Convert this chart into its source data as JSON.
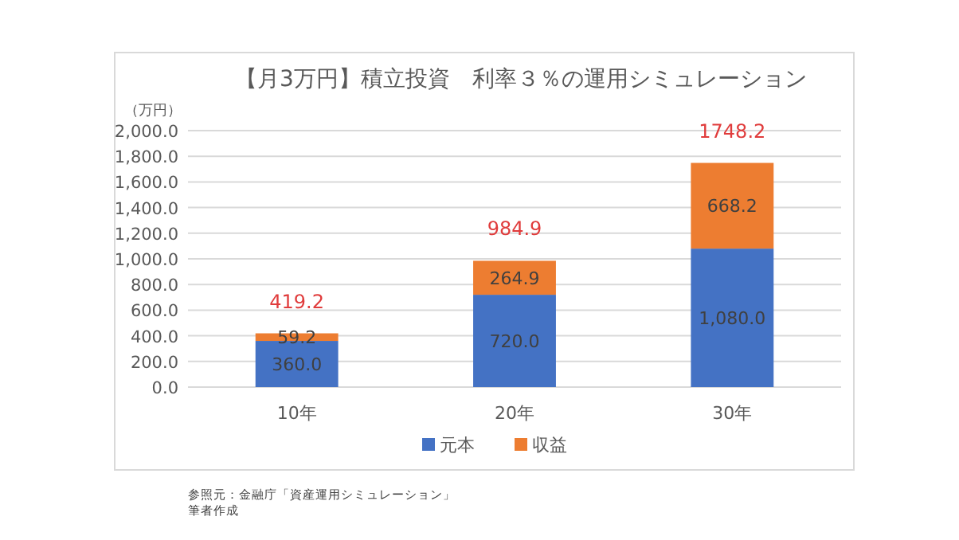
{
  "chart_data": {
    "type": "bar",
    "title": "【月3万円】積立投資　利率３％の運用シミュレーション",
    "ylabel": "（万円）",
    "categories": [
      "10年",
      "20年",
      "30年"
    ],
    "stacked": true,
    "series": [
      {
        "name": "元本",
        "color": "#4472c4",
        "values": [
          360.0,
          720.0,
          1080.0
        ],
        "value_labels": [
          "360.0",
          "720.0",
          "1,080.0"
        ]
      },
      {
        "name": "収益",
        "color": "#ed7d31",
        "values": [
          59.2,
          264.9,
          668.2
        ],
        "value_labels": [
          "59.2",
          "264.9",
          "668.2"
        ]
      }
    ],
    "totals": [
      "419.2",
      "984.9",
      "1748.2"
    ],
    "ylim": [
      0,
      2000
    ],
    "yticks": [
      {
        "value": 0,
        "label": "0.0"
      },
      {
        "value": 200,
        "label": "200.0"
      },
      {
        "value": 400,
        "label": "400.0"
      },
      {
        "value": 600,
        "label": "600.0"
      },
      {
        "value": 800,
        "label": "800.0"
      },
      {
        "value": 1000,
        "label": "1,000.0"
      },
      {
        "value": 1200,
        "label": "1,200.0"
      },
      {
        "value": 1400,
        "label": "1,400.0"
      },
      {
        "value": 1600,
        "label": "1,600.0"
      },
      {
        "value": 1800,
        "label": "1,800.0"
      },
      {
        "value": 2000,
        "label": "2,000.0"
      }
    ],
    "grid": "y",
    "legend": "bottom",
    "annotations": [
      "参照元：金融庁「資産運用シミュレーション」",
      "筆者作成"
    ]
  }
}
